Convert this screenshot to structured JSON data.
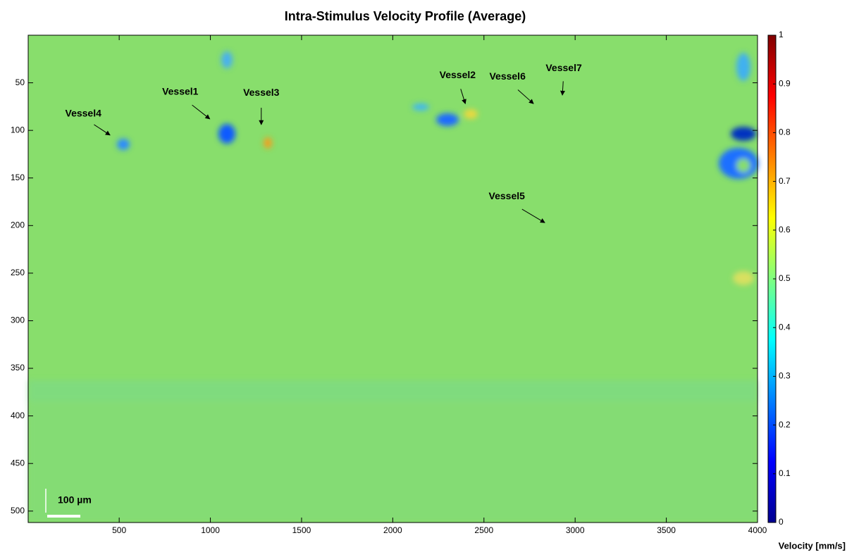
{
  "chart_data": {
    "type": "heatmap",
    "title": "Intra-Stimulus Velocity Profile (Average)",
    "xlim": [
      1,
      4000
    ],
    "xticks": [
      500,
      1000,
      1500,
      2000,
      2500,
      3000,
      3500,
      4000
    ],
    "ylim": [
      0,
      512
    ],
    "yticks": [
      50,
      100,
      150,
      200,
      250,
      300,
      350,
      400,
      450,
      500
    ],
    "y_reversed": true,
    "colorbar": {
      "label": "Velocity [mm/s]",
      "lim": [
        0,
        1
      ],
      "ticks": [
        0,
        0.1,
        0.2,
        0.3,
        0.4,
        0.5,
        0.6,
        0.7,
        0.8,
        0.9,
        1
      ],
      "colormap": "jet"
    },
    "scale_bar": "100 µm",
    "annotations": [
      {
        "text": "Vessel4",
        "x": 450,
        "y": 105
      },
      {
        "text": "Vessel1",
        "x": 997,
        "y": 88
      },
      {
        "text": "Vessel3",
        "x": 1279,
        "y": 94
      },
      {
        "text": "Vessel2",
        "x": 2398,
        "y": 72
      },
      {
        "text": "Vessel6",
        "x": 2772,
        "y": 72
      },
      {
        "text": "Vessel7",
        "x": 2930,
        "y": 63
      },
      {
        "text": "Vessel5",
        "x": 2834,
        "y": 197
      }
    ]
  }
}
